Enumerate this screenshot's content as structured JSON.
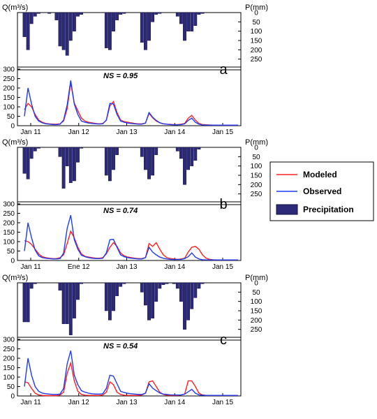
{
  "legend": {
    "modeled": "Modeled",
    "observed": "Observed",
    "precipitation": "Precipitation"
  },
  "colors": {
    "modeled": "#ff2020",
    "observed": "#1f3cf0",
    "precipitation": "#2d2a7a",
    "precip_edge": "#101040"
  },
  "chart_data": [
    {
      "type": "line",
      "panel": "a",
      "ns": "NS = 0.95",
      "q_label": "Q(m³/s)",
      "p_label": "P(mm)",
      "x_tick_labels": [
        "Jan 11",
        "Jan 12",
        "Jan 13",
        "Jan 14",
        "Jan 15"
      ],
      "y_ticks": [
        0,
        50,
        100,
        150,
        200,
        250,
        300
      ],
      "p_ticks": [
        0,
        50,
        100,
        150,
        200,
        250
      ],
      "ylim": [
        0,
        300
      ],
      "plim": [
        0,
        300
      ],
      "x": [
        0,
        1,
        2,
        3,
        4,
        5,
        6,
        7,
        8,
        9,
        10,
        11,
        12,
        13,
        14,
        15,
        16,
        17,
        18,
        19,
        20,
        21,
        22,
        23,
        24,
        25,
        26,
        27,
        28,
        29,
        30,
        31,
        32,
        33,
        34,
        35,
        36,
        37,
        38,
        39,
        40,
        41,
        42,
        43,
        44,
        45,
        46,
        47,
        48,
        49,
        50,
        51,
        52,
        53,
        54,
        55,
        56,
        57,
        58,
        59,
        60
      ],
      "series": [
        {
          "name": "Modeled",
          "values": [
            85,
            118,
            100,
            60,
            30,
            18,
            12,
            10,
            8,
            8,
            10,
            25,
            90,
            228,
            120,
            80,
            40,
            25,
            18,
            15,
            12,
            10,
            12,
            28,
            105,
            128,
            70,
            30,
            22,
            18,
            15,
            12,
            10,
            10,
            14,
            65,
            42,
            25,
            15,
            10,
            8,
            7,
            6,
            6,
            8,
            12,
            40,
            55,
            30,
            12,
            6,
            5,
            4,
            3,
            3,
            3,
            3,
            3,
            3,
            3,
            3
          ]
        },
        {
          "name": "Observed",
          "values": [
            50,
            200,
            115,
            50,
            25,
            15,
            10,
            8,
            6,
            6,
            8,
            30,
            110,
            240,
            115,
            60,
            25,
            18,
            14,
            12,
            10,
            9,
            10,
            30,
            118,
            115,
            60,
            25,
            18,
            14,
            12,
            10,
            8,
            8,
            14,
            70,
            45,
            28,
            16,
            10,
            8,
            6,
            5,
            5,
            6,
            10,
            28,
            40,
            18,
            8,
            4,
            3,
            3,
            3,
            3,
            3,
            3,
            3,
            3,
            3,
            3
          ]
        }
      ],
      "precipitation": [
        130,
        200,
        60,
        20,
        5,
        0,
        0,
        5,
        0,
        40,
        180,
        200,
        230,
        150,
        100,
        20,
        10,
        0,
        0,
        0,
        0,
        0,
        0,
        190,
        200,
        100,
        40,
        10,
        5,
        0,
        0,
        0,
        0,
        160,
        200,
        150,
        50,
        10,
        5,
        0,
        0,
        0,
        0,
        20,
        60,
        150,
        100,
        100,
        70,
        10,
        5,
        0,
        0,
        0,
        0,
        0,
        0,
        0,
        0,
        0,
        0
      ]
    },
    {
      "type": "line",
      "panel": "b",
      "ns": "NS = 0.74",
      "q_label": "Q(m³/s)",
      "p_label": "P(mm)",
      "x_tick_labels": [
        "Jan 11",
        "Ene 12",
        "Jan 13",
        "Jan 14",
        "Jan 15"
      ],
      "y_ticks": [
        0,
        50,
        100,
        150,
        200,
        250,
        300
      ],
      "p_ticks": [
        0,
        50,
        100,
        150,
        200,
        250
      ],
      "ylim": [
        0,
        300
      ],
      "plim": [
        0,
        300
      ],
      "x": [
        0,
        1,
        2,
        3,
        4,
        5,
        6,
        7,
        8,
        9,
        10,
        11,
        12,
        13,
        14,
        15,
        16,
        17,
        18,
        19,
        20,
        21,
        22,
        23,
        24,
        25,
        26,
        27,
        28,
        29,
        30,
        31,
        32,
        33,
        34,
        35,
        36,
        37,
        38,
        39,
        40,
        41,
        42,
        43,
        44,
        45,
        46,
        47,
        48,
        49,
        50,
        51,
        52,
        53,
        54,
        55,
        56,
        57,
        58,
        59,
        60
      ],
      "series": [
        {
          "name": "Modeled",
          "values": [
            105,
            100,
            85,
            60,
            35,
            20,
            15,
            12,
            10,
            10,
            15,
            30,
            90,
            155,
            120,
            70,
            35,
            22,
            18,
            15,
            12,
            12,
            15,
            35,
            70,
            95,
            75,
            40,
            25,
            18,
            15,
            12,
            10,
            10,
            15,
            90,
            75,
            95,
            60,
            30,
            15,
            10,
            8,
            6,
            8,
            12,
            45,
            70,
            75,
            60,
            30,
            12,
            6,
            4,
            3,
            3,
            3,
            3,
            3,
            3,
            3
          ]
        },
        {
          "name": "Observed",
          "values": [
            50,
            200,
            120,
            55,
            25,
            15,
            12,
            10,
            8,
            8,
            10,
            40,
            170,
            240,
            110,
            60,
            28,
            20,
            15,
            12,
            10,
            10,
            12,
            40,
            110,
            112,
            70,
            30,
            20,
            15,
            12,
            10,
            8,
            8,
            15,
            70,
            45,
            30,
            18,
            12,
            8,
            6,
            5,
            5,
            6,
            10,
            20,
            40,
            18,
            8,
            4,
            3,
            3,
            3,
            3,
            3,
            3,
            3,
            3,
            3,
            3
          ]
        }
      ],
      "precipitation": [
        140,
        170,
        60,
        20,
        5,
        0,
        0,
        0,
        0,
        0,
        50,
        220,
        100,
        190,
        180,
        80,
        5,
        0,
        0,
        0,
        0,
        0,
        0,
        150,
        180,
        120,
        40,
        0,
        0,
        0,
        0,
        0,
        0,
        50,
        120,
        170,
        150,
        40,
        0,
        0,
        0,
        0,
        0,
        20,
        60,
        200,
        120,
        100,
        70,
        10,
        0,
        0,
        0,
        0,
        0,
        0,
        0,
        0,
        0,
        0,
        0
      ]
    },
    {
      "type": "line",
      "panel": "c",
      "ns": "NS = 0.54",
      "q_label": "Q(m³/s)",
      "p_label": "P(mm)",
      "x_tick_labels": [
        "Jan 11",
        "Jan 12",
        "Jan 13",
        "Jan 14",
        "Jan 15"
      ],
      "y_ticks": [
        0,
        50,
        100,
        150,
        200,
        250,
        300
      ],
      "p_ticks": [
        0,
        50,
        100,
        150,
        200,
        250
      ],
      "ylim": [
        0,
        300
      ],
      "plim": [
        0,
        300
      ],
      "x": [
        0,
        1,
        2,
        3,
        4,
        5,
        6,
        7,
        8,
        9,
        10,
        11,
        12,
        13,
        14,
        15,
        16,
        17,
        18,
        19,
        20,
        21,
        22,
        23,
        24,
        25,
        26,
        27,
        28,
        29,
        30,
        31,
        32,
        33,
        34,
        35,
        36,
        37,
        38,
        39,
        40,
        41,
        42,
        43,
        44,
        45,
        46,
        47,
        48,
        49,
        50,
        51,
        52,
        53,
        54,
        55,
        56,
        57,
        58,
        59,
        60
      ],
      "series": [
        {
          "name": "Modeled",
          "values": [
            75,
            70,
            40,
            15,
            5,
            3,
            2,
            2,
            2,
            2,
            5,
            20,
            120,
            175,
            80,
            25,
            8,
            4,
            3,
            3,
            3,
            3,
            5,
            20,
            75,
            60,
            20,
            8,
            4,
            3,
            3,
            3,
            3,
            5,
            15,
            75,
            80,
            50,
            20,
            8,
            4,
            3,
            3,
            3,
            5,
            10,
            80,
            80,
            50,
            15,
            5,
            3,
            3,
            3,
            3,
            3,
            3,
            3,
            3,
            3,
            3
          ]
        },
        {
          "name": "Observed",
          "values": [
            50,
            200,
            110,
            50,
            25,
            15,
            12,
            10,
            8,
            8,
            10,
            40,
            170,
            240,
            110,
            60,
            28,
            20,
            15,
            12,
            10,
            10,
            12,
            40,
            110,
            105,
            65,
            25,
            18,
            14,
            12,
            10,
            8,
            8,
            15,
            65,
            42,
            28,
            16,
            10,
            8,
            6,
            5,
            5,
            6,
            10,
            22,
            35,
            15,
            6,
            4,
            3,
            3,
            3,
            3,
            3,
            3,
            3,
            3,
            3,
            3
          ]
        }
      ],
      "precipitation": [
        210,
        210,
        30,
        5,
        0,
        0,
        0,
        0,
        0,
        0,
        40,
        220,
        220,
        280,
        190,
        90,
        5,
        0,
        0,
        0,
        0,
        0,
        0,
        150,
        200,
        150,
        70,
        20,
        5,
        0,
        0,
        0,
        0,
        50,
        120,
        200,
        190,
        100,
        30,
        10,
        5,
        0,
        5,
        30,
        100,
        250,
        200,
        140,
        80,
        30,
        5,
        0,
        0,
        0,
        0,
        0,
        0,
        0,
        0,
        0,
        0
      ]
    }
  ]
}
